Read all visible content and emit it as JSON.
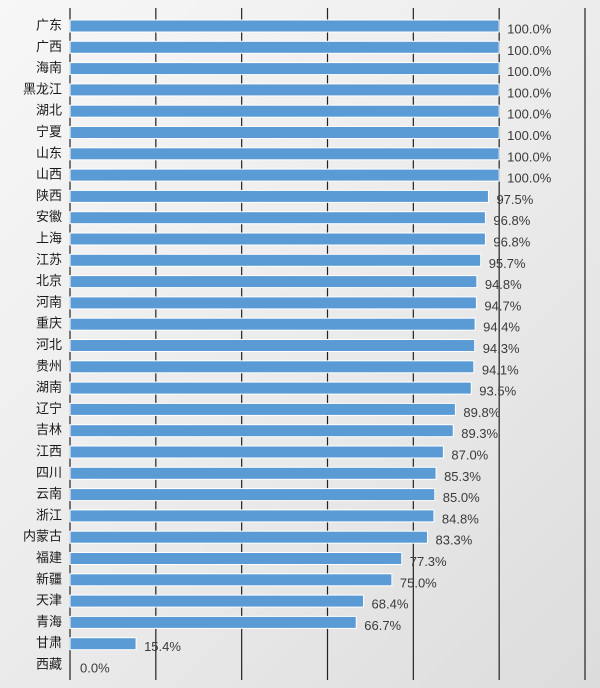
{
  "chart_data": {
    "type": "bar",
    "orientation": "horizontal",
    "title": "",
    "xlabel": "",
    "ylabel": "",
    "xlim": [
      0,
      120
    ],
    "grid": true,
    "categories": [
      "广东",
      "广西",
      "海南",
      "黑龙江",
      "湖北",
      "宁夏",
      "山东",
      "山西",
      "陕西",
      "安徽",
      "上海",
      "江苏",
      "北京",
      "河南",
      "重庆",
      "河北",
      "贵州",
      "湖南",
      "辽宁",
      "吉林",
      "江西",
      "四川",
      "云南",
      "浙江",
      "内蒙古",
      "福建",
      "新疆",
      "天津",
      "青海",
      "甘肃",
      "西藏"
    ],
    "values": [
      100.0,
      100.0,
      100.0,
      100.0,
      100.0,
      100.0,
      100.0,
      100.0,
      97.5,
      96.8,
      96.8,
      95.7,
      94.8,
      94.7,
      94.4,
      94.3,
      94.1,
      93.5,
      89.8,
      89.3,
      87.0,
      85.3,
      85.0,
      84.8,
      83.3,
      77.3,
      75.0,
      68.4,
      66.7,
      15.4,
      0.0
    ],
    "value_labels": [
      "100.0%",
      "100.0%",
      "100.0%",
      "100.0%",
      "100.0%",
      "100.0%",
      "100.0%",
      "100.0%",
      "97.5%",
      "96.8%",
      "96.8%",
      "95.7%",
      "94.8%",
      "94.7%",
      "94.4%",
      "94.3%",
      "94.1%",
      "93.5%",
      "89.8%",
      "89.3%",
      "87.0%",
      "85.3%",
      "85.0%",
      "84.8%",
      "83.3%",
      "77.3%",
      "75.0%",
      "68.4%",
      "66.7%",
      "15.4%",
      "0.0%"
    ],
    "colors": {
      "bar": "#5b9bd5",
      "bar_border": "#ffffff",
      "grid": "#222222",
      "label": "#1a1a1a",
      "value_label": "#3a3a3a"
    }
  }
}
